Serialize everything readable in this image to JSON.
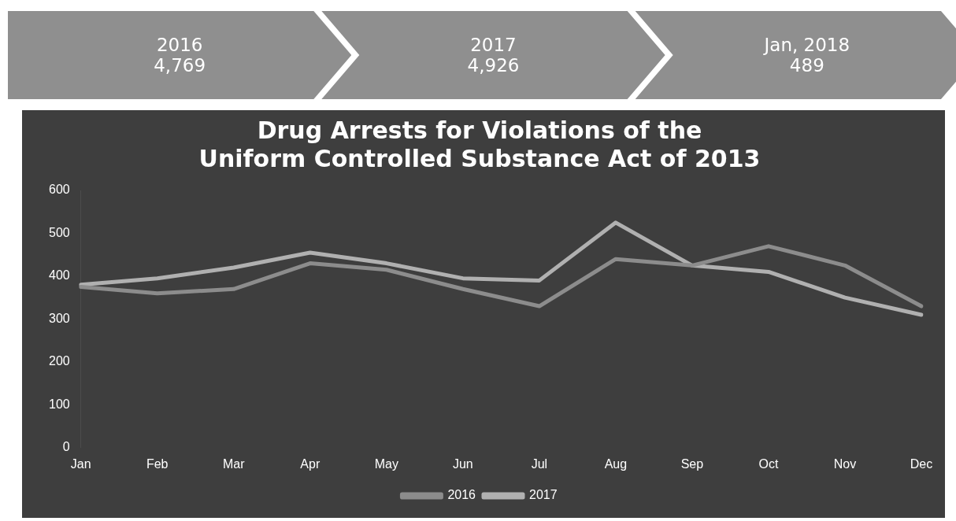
{
  "chart_data": [
    {
      "type": "other",
      "annotations": [
        "2016",
        "4,769",
        "2017",
        "4,926",
        "Jan, 2018",
        "489"
      ]
    },
    {
      "type": "line",
      "title": "Drug Arrests for Violations of the\nUniform Controlled Substance Act of 2013",
      "categories": [
        "Jan",
        "Feb",
        "Mar",
        "Apr",
        "May",
        "Jun",
        "Jul",
        "Aug",
        "Sep",
        "Oct",
        "Nov",
        "Dec"
      ],
      "series": [
        {
          "name": "2016",
          "color": "#8c8c8c",
          "values": [
            375,
            360,
            370,
            430,
            415,
            370,
            330,
            440,
            425,
            470,
            425,
            330
          ]
        },
        {
          "name": "2017",
          "color": "#b0b0b0",
          "values": [
            380,
            395,
            420,
            455,
            430,
            395,
            390,
            525,
            425,
            410,
            350,
            310
          ]
        }
      ],
      "ylim": [
        0,
        600
      ],
      "yticks": [
        0,
        100,
        200,
        300,
        400,
        500,
        600
      ],
      "grid": false,
      "legend": "bottom",
      "marker": "none",
      "line_style": "solid"
    }
  ]
}
